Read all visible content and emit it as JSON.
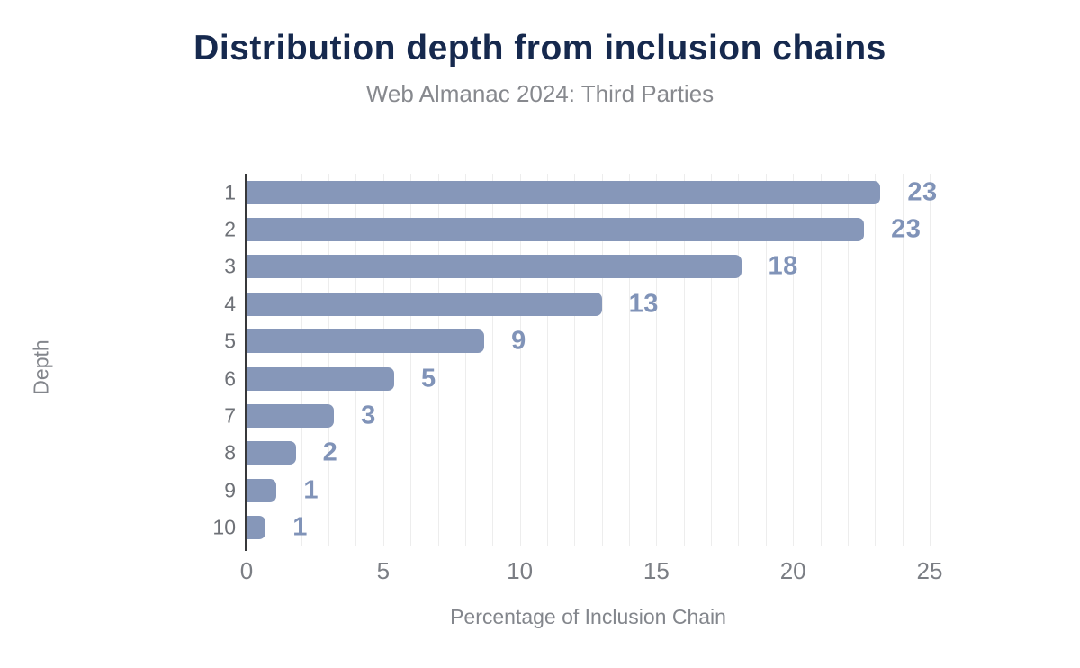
{
  "chart_data": {
    "type": "bar",
    "orientation": "horizontal",
    "title": "Distribution depth from inclusion chains",
    "subtitle": "Web Almanac 2024: Third Parties",
    "xlabel": "Percentage of Inclusion Chain",
    "ylabel": "Depth",
    "categories": [
      "1",
      "2",
      "3",
      "4",
      "5",
      "6",
      "7",
      "8",
      "9",
      "10"
    ],
    "values": [
      23.2,
      22.6,
      18.1,
      13.0,
      8.7,
      5.4,
      3.2,
      1.8,
      1.1,
      0.7
    ],
    "value_labels": [
      "23",
      "23",
      "18",
      "13",
      "9",
      "5",
      "3",
      "2",
      "1",
      "1"
    ],
    "xlim": [
      0,
      25
    ],
    "xticks": [
      0,
      5,
      10,
      15,
      20,
      25
    ],
    "grid_interval": 1,
    "grid": "on",
    "legend": "none"
  },
  "colors": {
    "background": "#ffffff",
    "title": "#16294E",
    "subtitle": "#87898E",
    "bar": "#8697B9",
    "value_label": "#8093B8",
    "axis_line": "#37383A",
    "grid": "#ededed",
    "x_tick": "#7B7E84",
    "y_tick": "#6E7177",
    "axis_title": "#83868C"
  }
}
